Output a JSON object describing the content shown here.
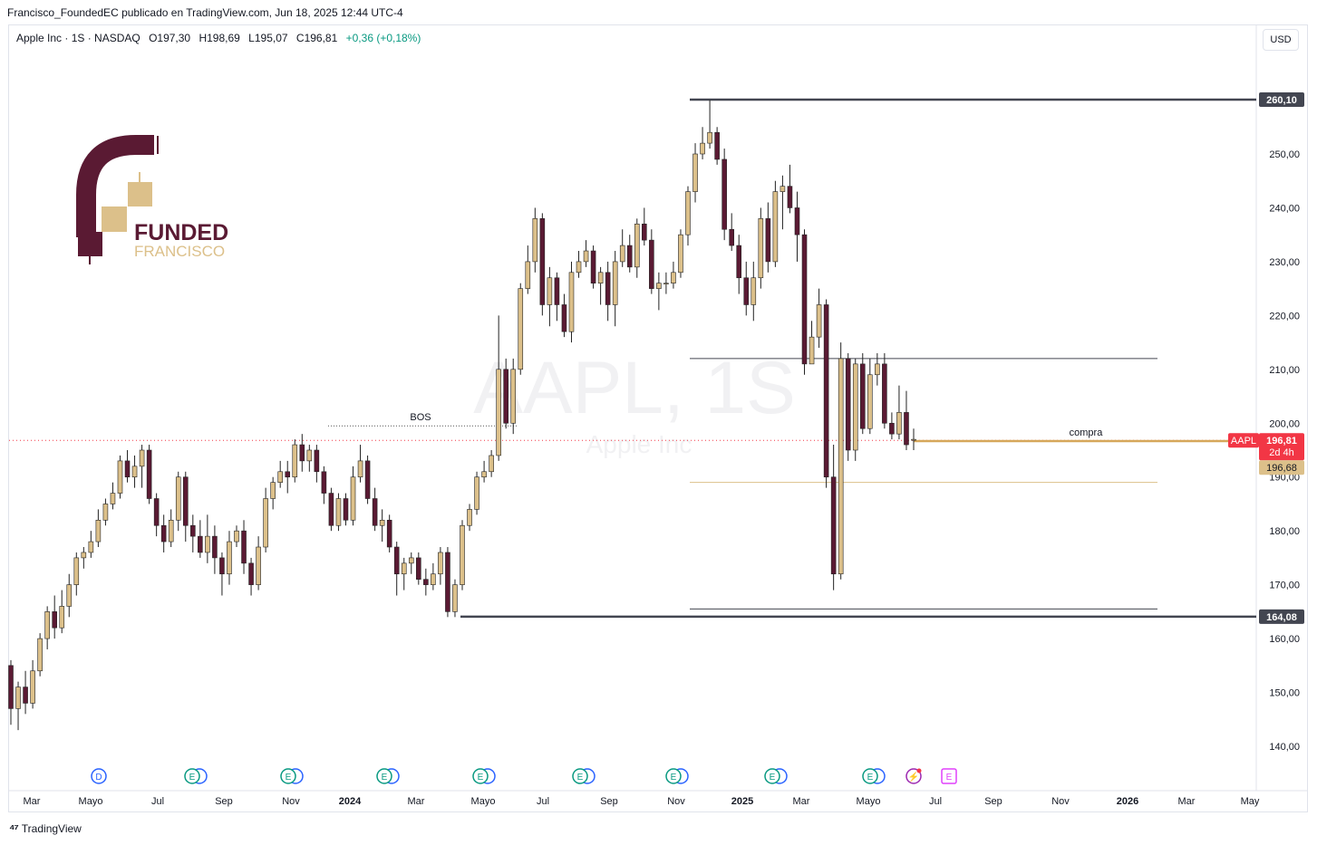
{
  "header": {
    "published_by": "Francisco_FoundedEC publicado en TradingView.com, Jun 18, 2025 12:44 UTC-4"
  },
  "legend": {
    "symbol": "Apple Inc · 1S · NASDAQ",
    "open": "O197,30",
    "high": "H198,69",
    "low": "L195,07",
    "close": "C196,81",
    "change": "+0,36 (+0,18%)",
    "change_color": "#089981"
  },
  "currency_button": "USD",
  "watermark": {
    "ticker": "AAPL, 1S",
    "name": "Apple Inc"
  },
  "logo": {
    "line1": "FUNDED",
    "line2": "FRANCISCO",
    "dark": "#5a1a33",
    "gold": "#dcc08a"
  },
  "footer": {
    "brand": "TradingView",
    "icon": "tradingview-logo-icon"
  },
  "chart_data": {
    "type": "candlestick",
    "ylim": [
      135,
      265
    ],
    "y_ticks": [
      "140,00",
      "150,00",
      "160,00",
      "170,00",
      "180,00",
      "190,00",
      "200,00",
      "210,00",
      "220,00",
      "230,00",
      "240,00",
      "250,00"
    ],
    "y_tick_values": [
      140,
      150,
      160,
      170,
      180,
      190,
      200,
      210,
      220,
      230,
      240,
      250
    ],
    "x_ticks": [
      {
        "label": "Mar",
        "bold": false
      },
      {
        "label": "Mayo",
        "bold": false
      },
      {
        "label": "Jul",
        "bold": false
      },
      {
        "label": "Sep",
        "bold": false
      },
      {
        "label": "Nov",
        "bold": false
      },
      {
        "label": "2024",
        "bold": true
      },
      {
        "label": "Mar",
        "bold": false
      },
      {
        "label": "Mayo",
        "bold": false
      },
      {
        "label": "Jul",
        "bold": false
      },
      {
        "label": "Sep",
        "bold": false
      },
      {
        "label": "Nov",
        "bold": false
      },
      {
        "label": "2025",
        "bold": true
      },
      {
        "label": "Mar",
        "bold": false
      },
      {
        "label": "Mayo",
        "bold": false
      },
      {
        "label": "Jul",
        "bold": false
      },
      {
        "label": "Sep",
        "bold": false
      },
      {
        "label": "Nov",
        "bold": false
      },
      {
        "label": "2026",
        "bold": true
      },
      {
        "label": "Mar",
        "bold": false
      },
      {
        "label": "May",
        "bold": false
      }
    ],
    "colors": {
      "up": "#dcc08a",
      "down": "#5a1a33",
      "wick": "#222222"
    },
    "candles": [
      [
        155,
        147,
        156,
        144
      ],
      [
        147,
        151,
        152,
        143
      ],
      [
        151,
        148,
        154,
        146
      ],
      [
        148,
        154,
        156,
        147
      ],
      [
        154,
        160,
        161,
        153
      ],
      [
        160,
        165,
        166,
        158
      ],
      [
        165,
        162,
        168,
        160
      ],
      [
        162,
        166,
        169,
        161
      ],
      [
        166,
        170,
        172,
        164
      ],
      [
        170,
        175,
        176,
        168
      ],
      [
        175,
        176,
        177,
        173
      ],
      [
        176,
        178,
        180,
        175
      ],
      [
        178,
        182,
        184,
        177
      ],
      [
        182,
        185,
        186,
        181
      ],
      [
        185,
        187,
        189,
        184
      ],
      [
        187,
        193,
        194,
        186
      ],
      [
        193,
        190,
        195,
        189
      ],
      [
        190,
        192,
        194,
        188
      ],
      [
        192,
        195,
        196,
        188
      ],
      [
        195,
        186,
        196,
        185
      ],
      [
        186,
        181,
        187,
        179
      ],
      [
        181,
        178,
        183,
        176
      ],
      [
        178,
        182,
        184,
        177
      ],
      [
        182,
        190,
        191,
        180
      ],
      [
        190,
        181,
        191,
        178
      ],
      [
        181,
        179,
        183,
        176
      ],
      [
        179,
        176,
        182,
        175
      ],
      [
        176,
        179,
        183,
        174
      ],
      [
        179,
        175,
        181,
        172
      ],
      [
        175,
        172,
        176,
        168
      ],
      [
        172,
        178,
        180,
        170
      ],
      [
        178,
        180,
        181,
        177
      ],
      [
        180,
        174,
        182,
        172
      ],
      [
        174,
        170,
        175,
        168
      ],
      [
        170,
        177,
        179,
        169
      ],
      [
        177,
        186,
        188,
        176
      ],
      [
        186,
        189,
        190,
        184
      ],
      [
        189,
        191,
        193,
        188
      ],
      [
        191,
        190,
        193,
        187
      ],
      [
        190,
        196,
        197,
        189
      ],
      [
        196,
        193,
        198,
        191
      ],
      [
        193,
        195,
        196,
        191
      ],
      [
        195,
        191,
        196,
        189
      ],
      [
        191,
        187,
        192,
        185
      ],
      [
        187,
        181,
        188,
        180
      ],
      [
        181,
        186,
        187,
        180
      ],
      [
        186,
        182,
        187,
        181
      ],
      [
        182,
        190,
        192,
        181
      ],
      [
        190,
        193,
        196,
        189
      ],
      [
        193,
        186,
        194,
        185
      ],
      [
        186,
        181,
        188,
        180
      ],
      [
        181,
        182,
        184,
        178
      ],
      [
        182,
        177,
        183,
        176
      ],
      [
        177,
        172,
        178,
        168
      ],
      [
        172,
        174,
        175,
        169
      ],
      [
        174,
        175,
        176,
        172
      ],
      [
        175,
        171,
        176,
        170
      ],
      [
        171,
        170,
        173,
        168
      ],
      [
        170,
        172,
        174,
        169
      ],
      [
        172,
        176,
        177,
        170
      ],
      [
        176,
        165,
        177,
        164
      ],
      [
        165,
        170,
        171,
        164
      ],
      [
        170,
        181,
        182,
        169
      ],
      [
        181,
        184,
        185,
        180
      ],
      [
        184,
        190,
        191,
        183
      ],
      [
        190,
        191,
        193,
        189
      ],
      [
        191,
        194,
        195,
        190
      ],
      [
        194,
        210,
        220,
        193
      ],
      [
        210,
        200,
        212,
        199
      ],
      [
        200,
        210,
        212,
        198
      ],
      [
        210,
        225,
        226,
        209
      ],
      [
        225,
        230,
        233,
        224
      ],
      [
        230,
        238,
        240,
        228
      ],
      [
        238,
        222,
        239,
        220
      ],
      [
        222,
        227,
        229,
        218
      ],
      [
        227,
        222,
        228,
        219
      ],
      [
        222,
        217,
        224,
        216
      ],
      [
        217,
        228,
        230,
        215
      ],
      [
        228,
        230,
        232,
        227
      ],
      [
        230,
        232,
        234,
        229
      ],
      [
        232,
        226,
        233,
        225
      ],
      [
        226,
        228,
        229,
        222
      ],
      [
        228,
        222,
        230,
        219
      ],
      [
        222,
        230,
        232,
        218
      ],
      [
        230,
        233,
        236,
        229
      ],
      [
        233,
        229,
        235,
        228
      ],
      [
        229,
        237,
        238,
        227
      ],
      [
        237,
        234,
        240,
        233
      ],
      [
        234,
        225,
        236,
        224
      ],
      [
        225,
        226,
        228,
        221
      ],
      [
        226,
        226,
        228,
        224
      ],
      [
        226,
        228,
        230,
        225
      ],
      [
        228,
        235,
        236,
        227
      ],
      [
        235,
        243,
        244,
        233
      ],
      [
        243,
        250,
        252,
        241
      ],
      [
        250,
        252,
        255,
        249
      ],
      [
        252,
        254,
        260,
        251
      ],
      [
        254,
        249,
        255,
        248
      ],
      [
        249,
        236,
        251,
        234
      ],
      [
        236,
        233,
        239,
        232
      ],
      [
        233,
        227,
        235,
        224
      ],
      [
        227,
        222,
        230,
        220
      ],
      [
        222,
        227,
        230,
        219
      ],
      [
        227,
        238,
        240,
        225
      ],
      [
        238,
        230,
        241,
        228
      ],
      [
        230,
        243,
        245,
        229
      ],
      [
        243,
        244,
        246,
        236
      ],
      [
        244,
        240,
        248,
        239
      ],
      [
        240,
        235,
        243,
        230
      ],
      [
        235,
        211,
        236,
        209
      ],
      [
        211,
        216,
        219,
        214
      ],
      [
        216,
        222,
        225,
        214
      ],
      [
        222,
        190,
        223,
        188
      ],
      [
        190,
        172,
        196,
        169
      ],
      [
        172,
        212,
        215,
        171
      ],
      [
        212,
        195,
        213,
        193
      ],
      [
        195,
        211,
        212,
        193
      ],
      [
        211,
        199,
        213,
        198
      ],
      [
        199,
        209,
        212,
        198
      ],
      [
        209,
        211,
        213,
        207
      ],
      [
        211,
        200,
        213,
        199
      ],
      [
        200,
        198,
        202,
        197
      ],
      [
        198,
        202,
        207,
        197
      ],
      [
        202,
        196,
        206,
        195
      ],
      [
        197,
        197,
        199,
        195
      ]
    ],
    "levels": [
      {
        "value": 260.1,
        "label": "260,10",
        "style": "thick",
        "x_from": 761
      },
      {
        "value": 212.0,
        "label": "",
        "style": "thin",
        "x_from": 761
      },
      {
        "value": 189.0,
        "label": "",
        "style": "gold",
        "x_from": 761
      },
      {
        "value": 165.5,
        "label": "",
        "style": "thin",
        "x_from": 761
      },
      {
        "value": 164.08,
        "label": "164,08",
        "style": "thick",
        "x_from": 508
      }
    ],
    "bos": {
      "label": "BOS",
      "value": 199.5
    },
    "buy_zone": {
      "label": "compra",
      "value": 196.68
    },
    "last_price": {
      "label": "196,81",
      "symbol": "AAPL",
      "countdown": "2d 4h",
      "value": 196.81
    },
    "entry_price": {
      "label": "196,68",
      "value": 196.68
    },
    "events": [
      {
        "type": "D"
      },
      {
        "type": "ED"
      },
      {
        "type": "ED"
      },
      {
        "type": "ED"
      },
      {
        "type": "ED"
      },
      {
        "type": "ED"
      },
      {
        "type": "ED"
      },
      {
        "type": "ED"
      },
      {
        "type": "ED"
      },
      {
        "type": "flash"
      },
      {
        "type": "E-future"
      }
    ]
  }
}
